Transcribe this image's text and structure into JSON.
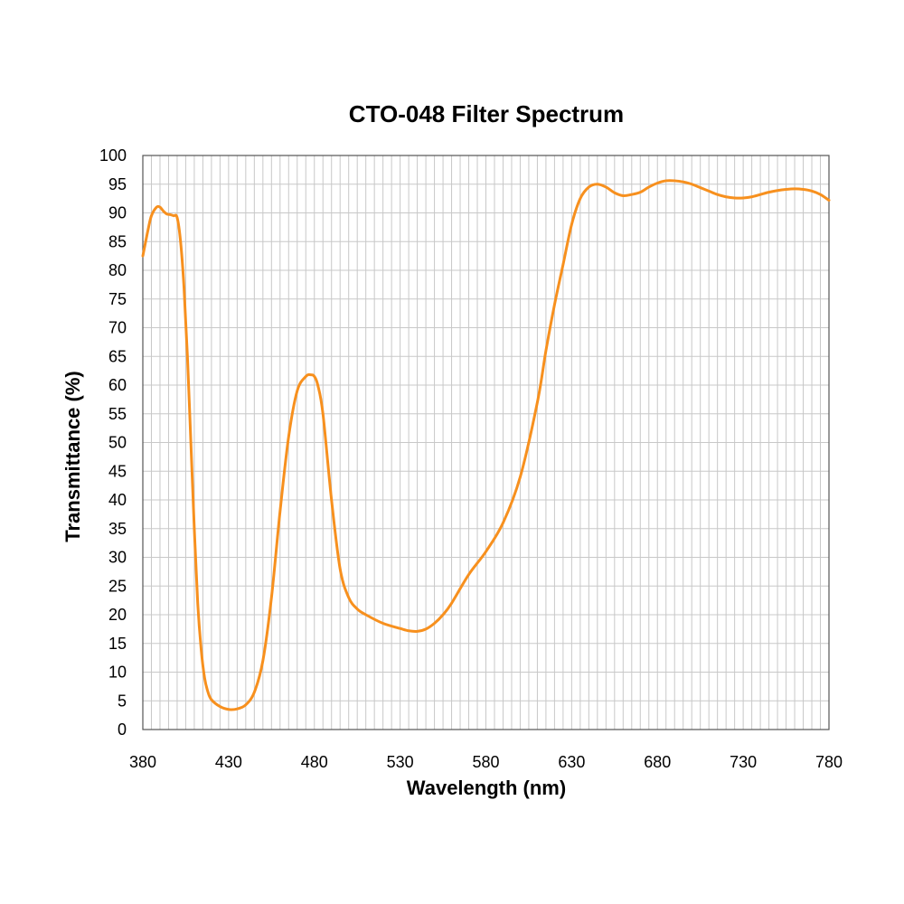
{
  "chart_data": {
    "type": "line",
    "title": "CTO-048 Filter Spectrum",
    "xlabel": "Wavelength (nm)",
    "ylabel": "Transmittance (%)",
    "xlim": [
      380,
      780
    ],
    "ylim": [
      0,
      100
    ],
    "x_ticks": [
      380,
      430,
      480,
      530,
      580,
      630,
      680,
      730,
      780
    ],
    "y_ticks": [
      0,
      5,
      10,
      15,
      20,
      25,
      30,
      35,
      40,
      45,
      50,
      55,
      60,
      65,
      70,
      75,
      80,
      85,
      90,
      95,
      100
    ],
    "x_minor_step": 5,
    "grid": true,
    "legend": "none",
    "colors": {
      "line": "#f7901e",
      "grid": "#c8c8c8",
      "frame": "#555555"
    },
    "series": [
      {
        "x": [
          380,
          383,
          385,
          388,
          390,
          392,
          394,
          396,
          398,
          400,
          402,
          404,
          406,
          408,
          410,
          412,
          414,
          416,
          418,
          420,
          425,
          430,
          435,
          440,
          445,
          450,
          455,
          460,
          465,
          470,
          475,
          478,
          480,
          482,
          485,
          490,
          495,
          500,
          505,
          510,
          520,
          530,
          535,
          540,
          545,
          550,
          555,
          560,
          570,
          580,
          590,
          600,
          610,
          615,
          620,
          625,
          630,
          635,
          640,
          645,
          650,
          655,
          660,
          665,
          670,
          675,
          680,
          685,
          690,
          695,
          700,
          705,
          710,
          715,
          720,
          725,
          730,
          735,
          740,
          745,
          750,
          755,
          760,
          765,
          770,
          775,
          780
        ],
        "y": [
          82.5,
          87,
          89.5,
          91,
          91,
          90.3,
          89.8,
          89.7,
          89.5,
          89.2,
          85,
          77,
          65,
          50,
          35,
          22,
          14,
          9,
          6.5,
          5.2,
          4,
          3.5,
          3.6,
          4.3,
          6.5,
          12,
          23,
          38,
          51,
          59,
          61.5,
          61.8,
          61.5,
          60,
          55,
          40,
          28,
          23,
          21,
          20,
          18.5,
          17.6,
          17.2,
          17.1,
          17.5,
          18.5,
          20,
          22,
          27,
          31,
          36,
          44,
          57,
          66,
          74,
          81,
          88,
          92.5,
          94.5,
          95,
          94.5,
          93.5,
          93,
          93.2,
          93.6,
          94.5,
          95.2,
          95.6,
          95.6,
          95.4,
          95,
          94.4,
          93.8,
          93.2,
          92.8,
          92.6,
          92.6,
          92.8,
          93.2,
          93.6,
          93.9,
          94.1,
          94.2,
          94.1,
          93.8,
          93.2,
          92.2
        ]
      }
    ]
  }
}
